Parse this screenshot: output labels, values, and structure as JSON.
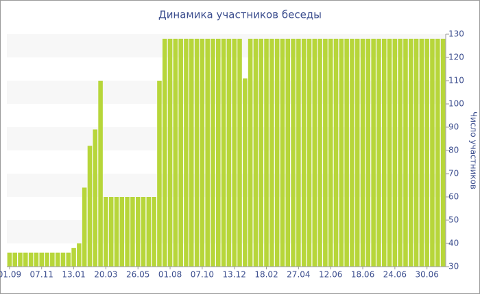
{
  "chart_data": {
    "type": "bar",
    "title": "Динамика участников беседы",
    "y_label": "Число участников",
    "color": "#b7d63a",
    "band_color": "#f7f7f7",
    "axis_side": "right",
    "categories": [
      "01.09",
      null,
      null,
      null,
      null,
      null,
      "07.11",
      null,
      null,
      null,
      null,
      null,
      "13.01",
      null,
      null,
      null,
      null,
      null,
      "20.03",
      null,
      null,
      null,
      null,
      null,
      "26.05",
      null,
      null,
      null,
      null,
      null,
      "01.08",
      null,
      null,
      null,
      null,
      null,
      "07.10",
      null,
      null,
      null,
      null,
      null,
      "13.12",
      null,
      null,
      null,
      null,
      null,
      "18.02",
      null,
      null,
      null,
      null,
      null,
      "27.04",
      null,
      null,
      null,
      null,
      null,
      "12.06",
      null,
      null,
      null,
      null,
      null,
      "18.06",
      null,
      null,
      null,
      null,
      null,
      "24.06",
      null,
      null,
      null,
      null,
      null,
      "30.06",
      null,
      null,
      null
    ],
    "values": [
      36,
      36,
      36,
      36,
      36,
      36,
      36,
      36,
      36,
      36,
      36,
      36,
      38,
      40,
      64,
      82,
      89,
      110,
      60,
      60,
      60,
      60,
      60,
      60,
      60,
      60,
      60,
      60,
      110,
      128,
      128,
      128,
      128,
      128,
      128,
      128,
      128,
      128,
      128,
      128,
      128,
      128,
      128,
      128,
      111,
      128,
      128,
      128,
      128,
      128,
      128,
      128,
      128,
      128,
      128,
      128,
      128,
      128,
      128,
      128,
      128,
      128,
      128,
      128,
      128,
      128,
      128,
      128,
      128,
      128,
      128,
      128,
      128,
      128,
      128,
      128,
      128,
      128,
      128,
      128,
      128,
      128
    ],
    "ylim": [
      30,
      130
    ],
    "yticks": [
      30,
      40,
      50,
      60,
      70,
      80,
      90,
      100,
      110,
      120,
      130
    ]
  }
}
